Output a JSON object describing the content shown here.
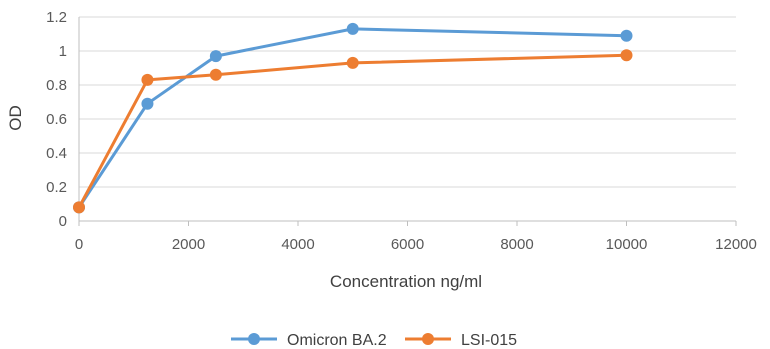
{
  "chart_data": {
    "type": "scatter",
    "mode": "lines+markers",
    "xlabel": "Concentration ng/ml",
    "ylabel": "OD",
    "xlim": [
      0,
      12000
    ],
    "ylim": [
      0,
      1.2
    ],
    "xticks": [
      0,
      2000,
      4000,
      6000,
      8000,
      10000,
      12000
    ],
    "yticks": [
      0,
      0.2,
      0.4,
      0.6,
      0.8,
      1,
      1.2
    ],
    "xtick_labels": [
      "0",
      "2000",
      "4000",
      "6000",
      "8000",
      "10000",
      "12000"
    ],
    "ytick_labels": [
      "0",
      "0.2",
      "0.4",
      "0.6",
      "0.8",
      "1",
      "1.2"
    ],
    "grid": "horizontal",
    "legend_position": "bottom",
    "series": [
      {
        "name": "Omicron BA.2",
        "color": "#5b9bd5",
        "x": [
          0,
          1250,
          2500,
          5000,
          10000
        ],
        "y": [
          0.08,
          0.69,
          0.97,
          1.13,
          1.09
        ]
      },
      {
        "name": "LSI-015",
        "color": "#ed7d31",
        "x": [
          0,
          1250,
          2500,
          5000,
          10000
        ],
        "y": [
          0.08,
          0.83,
          0.86,
          0.93,
          0.975
        ]
      }
    ]
  }
}
